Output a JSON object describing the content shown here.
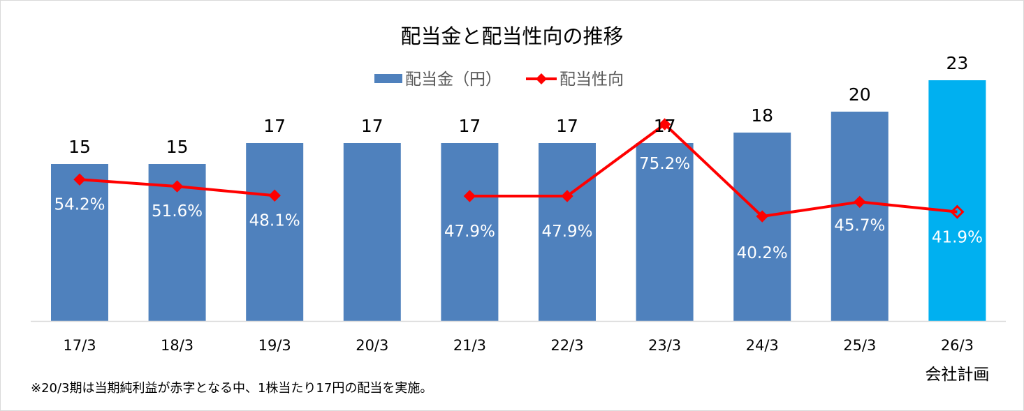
{
  "chart_data": {
    "type": "bar",
    "title": "配当金と配当性向の推移",
    "categories": [
      "17/3",
      "18/3",
      "19/3",
      "20/3",
      "21/3",
      "22/3",
      "23/3",
      "24/3",
      "25/3",
      "26/3"
    ],
    "category_sublabels": [
      "",
      "",
      "",
      "",
      "",
      "",
      "",
      "",
      "",
      "会社計画"
    ],
    "legend_position": "top-center",
    "grid": false,
    "series": [
      {
        "name": "配当金（円）",
        "type": "bar",
        "color": "#4F81BD",
        "highlight_color": "#00B0F0",
        "highlight_index": 9,
        "values": [
          15,
          15,
          17,
          17,
          17,
          17,
          17,
          18,
          20,
          23
        ],
        "labels": [
          "15",
          "15",
          "17",
          "17",
          "17",
          "17",
          "17",
          "18",
          "20",
          "23"
        ]
      },
      {
        "name": "配当性向",
        "type": "line",
        "color": "#FF0000",
        "axis": "secondary",
        "values": [
          54.2,
          51.6,
          48.1,
          null,
          47.9,
          47.9,
          75.2,
          40.2,
          45.7,
          41.9
        ],
        "labels": [
          "54.2%",
          "51.6%",
          "48.1%",
          "",
          "47.9%",
          "47.9%",
          "75.2%",
          "40.2%",
          "45.7%",
          "41.9%"
        ]
      }
    ],
    "ylim": [
      0,
      23
    ],
    "footnote": "※20/3期は当期純利益が赤字となる中、1株当たり17円の配当を実施。"
  }
}
